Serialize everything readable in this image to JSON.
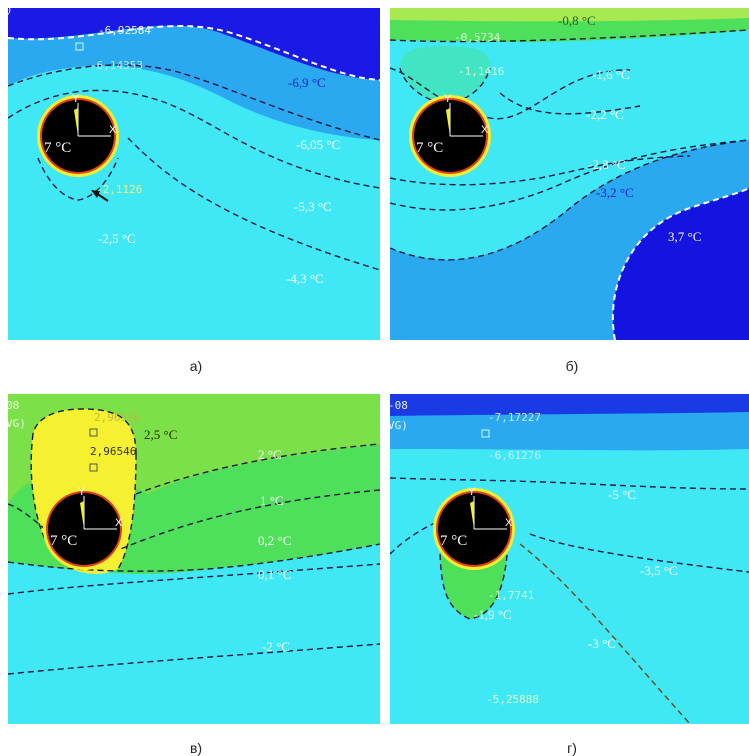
{
  "panels": [
    {
      "caption": "а)",
      "pipe_temp": "7 °C",
      "axis_x": "X",
      "axis_y": "Y",
      "corner_label": ")",
      "small_values": [
        "-6,92584",
        "-6,14353",
        "-2,1126"
      ],
      "isotherms": [
        "-6,9 °C",
        "-6,05 °C",
        "-5,3 °C",
        "-2,5 °C",
        "-4,3 °C"
      ],
      "colors": {
        "dark": "#1a1ae6",
        "mid": "#2aa8f0",
        "light": "#40e8f5"
      }
    },
    {
      "caption": "б)",
      "pipe_temp": "7 °C",
      "axis_x": "X",
      "axis_y": "Y",
      "small_values": [
        "-0,5734",
        "-1,1416"
      ],
      "isotherms": [
        "-0,8 °C",
        "-1,6 °C",
        "-2,2 °C",
        "-2,8 °C",
        "-3,2 °C",
        "3,7 °C"
      ],
      "colors": {
        "green": "#4ee05a",
        "light": "#40e8f5",
        "mid": "#2aa8f0",
        "dark": "#1414e0"
      }
    },
    {
      "caption": "в)",
      "pipe_temp": "7 °C",
      "axis_x": "X",
      "axis_y": "Y",
      "corner_labels": [
        "08",
        "VG)"
      ],
      "small_values": [
        "2,96546",
        "2,96546"
      ],
      "isotherms": [
        "2,5 °C",
        "2 °C",
        "1 °C",
        "0,2 °C",
        "0,1 °C",
        "-2 °C"
      ],
      "colors": {
        "yellow": "#f5f030",
        "green": "#4ee05a",
        "light": "#40e8f5"
      }
    },
    {
      "caption": "г)",
      "pipe_temp": "7 °C",
      "axis_x": "X",
      "axis_y": "Y",
      "corner_labels": [
        "-08",
        "VG)"
      ],
      "small_values": [
        "-7,17227",
        "-6,61276",
        "-1,7741",
        "-5,25888"
      ],
      "isotherms": [
        "-5 °C",
        "-3,5 °C",
        "-1,9 °C",
        "-3 °C"
      ],
      "colors": {
        "dark": "#1a3ae6",
        "mid": "#2aa8f0",
        "light": "#40e8f5",
        "green": "#4ee05a"
      }
    }
  ]
}
